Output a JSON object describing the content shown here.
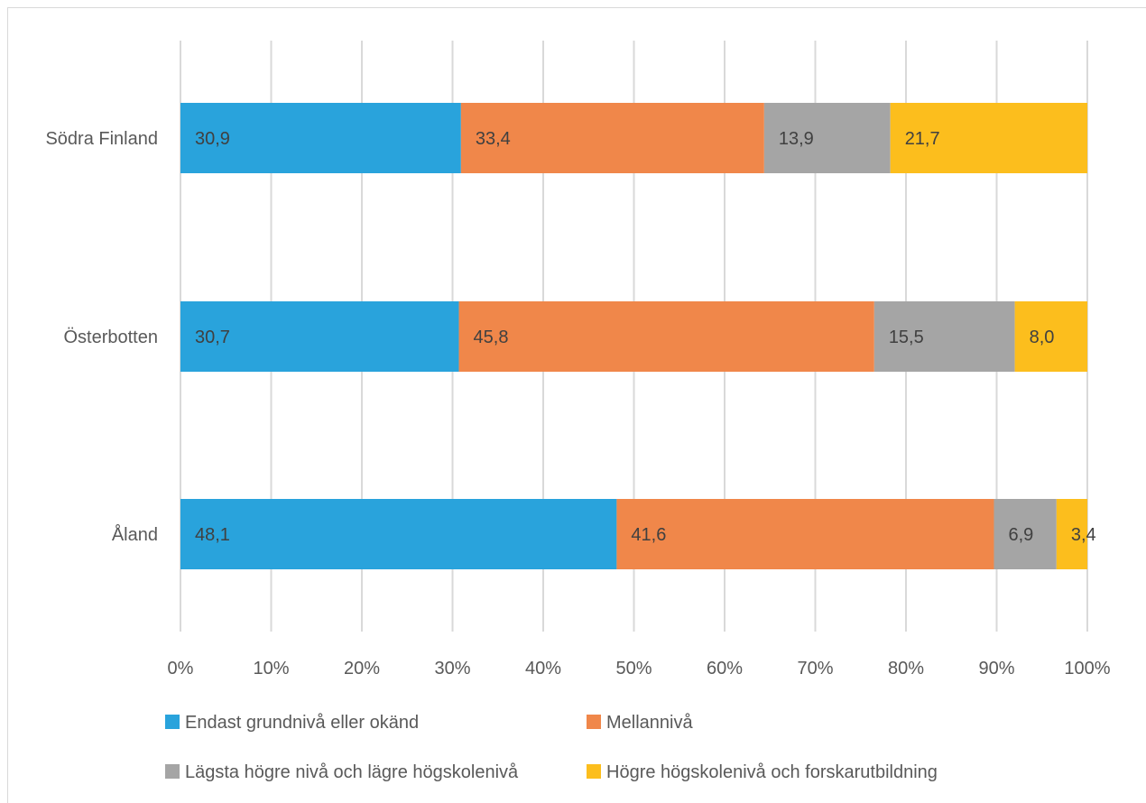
{
  "chart_data": {
    "type": "bar",
    "orientation": "horizontal",
    "stacked": "percent",
    "categories": [
      "Södra Finland",
      "Österbotten",
      "Åland"
    ],
    "series": [
      {
        "name": "Endast grundnivå eller okänd",
        "color": "#29a3dc",
        "values": [
          30.9,
          30.7,
          48.1
        ],
        "labels": [
          "30,9",
          "30,7",
          "48,1"
        ]
      },
      {
        "name": "Mellannivå",
        "color": "#f0874a",
        "values": [
          33.4,
          45.8,
          41.6
        ],
        "labels": [
          "33,4",
          "45,8",
          "41,6"
        ]
      },
      {
        "name": "Lägsta högre nivå och lägre högskolenivå",
        "color": "#a5a5a5",
        "values": [
          13.9,
          15.5,
          6.9
        ],
        "labels": [
          "13,9",
          "15,5",
          "6,9"
        ]
      },
      {
        "name": "Högre högskolenivå och forskarutbildning",
        "color": "#fcbe1d",
        "values": [
          21.7,
          8.0,
          3.4
        ],
        "labels": [
          "21,7",
          "8,0",
          "3,4"
        ]
      }
    ],
    "xticks": [
      "0%",
      "10%",
      "20%",
      "30%",
      "40%",
      "50%",
      "60%",
      "70%",
      "80%",
      "90%",
      "100%"
    ],
    "xlim": [
      0,
      100
    ],
    "grid": "vertical",
    "legend_position": "bottom"
  }
}
